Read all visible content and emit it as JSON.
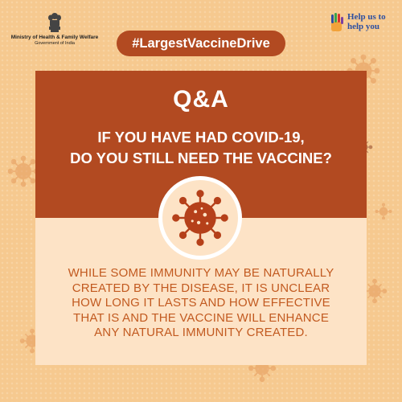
{
  "header": {
    "ministry_name": "Ministry of Health & Family Welfare",
    "government": "Government of India",
    "help_line1": "Help us to",
    "help_line2": "help you"
  },
  "hashtag": "#LargestVaccineDrive",
  "card": {
    "title": "Q&A",
    "question_line1": "IF YOU HAVE HAD COVID-19,",
    "question_line2": "DO YOU STILL NEED THE VACCINE?",
    "answer_line1": "WHILE SOME IMMUNITY MAY BE NATURALLY",
    "answer_line2": "CREATED BY THE DISEASE, IT IS UNCLEAR",
    "answer_line3": "HOW LONG IT LASTS AND HOW EFFECTIVE",
    "answer_line4": "THAT IS AND THE VACCINE WILL ENHANCE",
    "answer_line5": "ANY NATURAL IMMUNITY CREATED."
  },
  "colors": {
    "background": "#f6c98f",
    "brand": "#b24a21",
    "panel_light": "#fde3c6",
    "answer_text": "#c25a20"
  },
  "icons": {
    "emblem": "national-emblem-icon",
    "help": "help-hand-icon",
    "virus": "virus-icon"
  }
}
